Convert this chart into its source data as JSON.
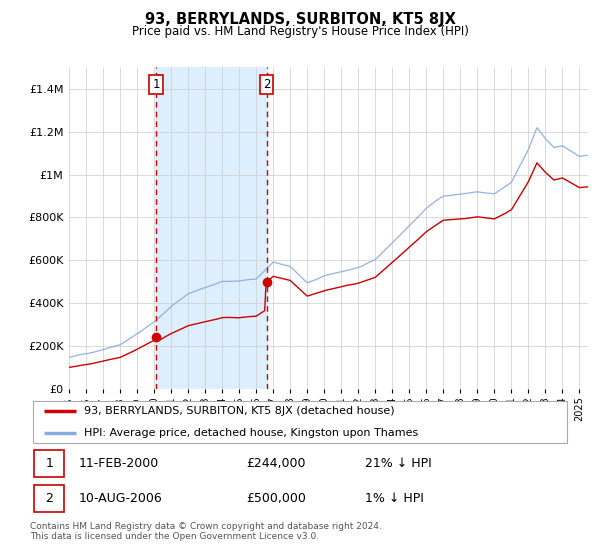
{
  "title": "93, BERRYLANDS, SURBITON, KT5 8JX",
  "subtitle": "Price paid vs. HM Land Registry's House Price Index (HPI)",
  "legend_line1": "93, BERRYLANDS, SURBITON, KT5 8JX (detached house)",
  "legend_line2": "HPI: Average price, detached house, Kingston upon Thames",
  "footer": "Contains HM Land Registry data © Crown copyright and database right 2024.\nThis data is licensed under the Open Government Licence v3.0.",
  "annotation1_date": "11-FEB-2000",
  "annotation1_price": "£244,000",
  "annotation1_hpi": "21% ↓ HPI",
  "annotation2_date": "10-AUG-2006",
  "annotation2_price": "£500,000",
  "annotation2_hpi": "1% ↓ HPI",
  "line_color_property": "#cc0000",
  "line_color_hpi": "#88aadd",
  "shaded_region_color": "#ddeeff",
  "dashed_line_color": "#cc0000",
  "marker_color": "#cc0000",
  "bg_color": "#ffffff",
  "plot_bg_color": "#ffffff",
  "grid_color": "#cccccc",
  "ylim": [
    0,
    1500000
  ],
  "yticks": [
    0,
    200000,
    400000,
    600000,
    800000,
    1000000,
    1200000,
    1400000
  ],
  "vline1_x": 2000.11,
  "vline2_x": 2006.62,
  "marker1_x": 2000.11,
  "marker1_y": 244000,
  "marker2_x": 2006.62,
  "marker2_y": 500000,
  "xmin": 1995.0,
  "xmax": 2025.5
}
